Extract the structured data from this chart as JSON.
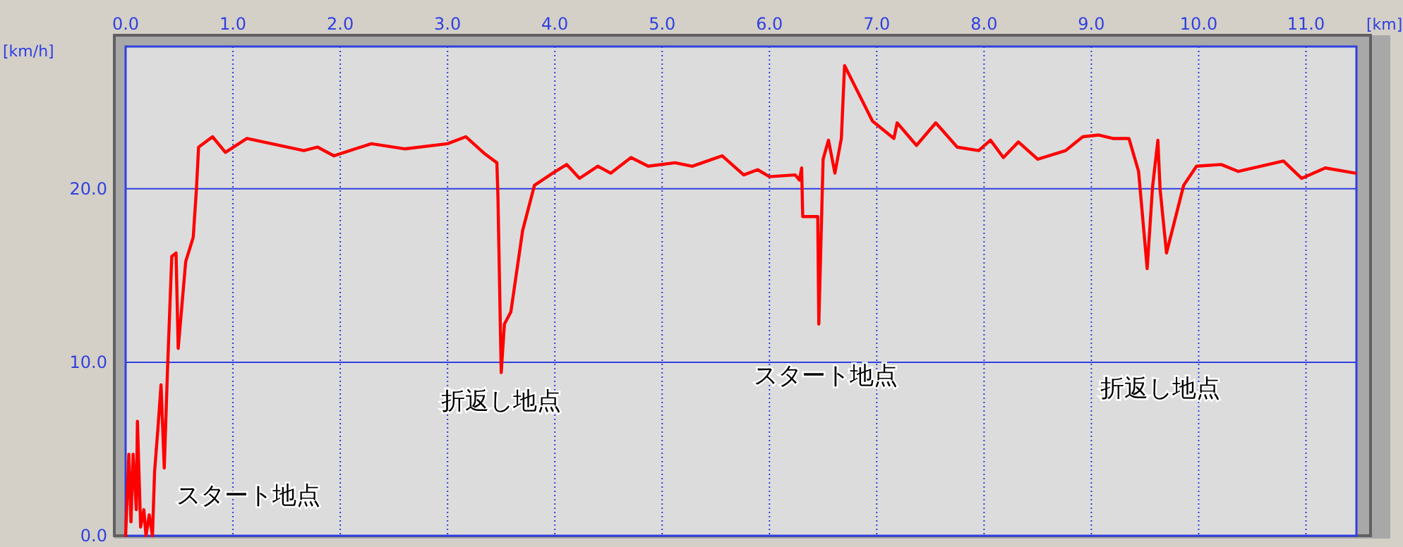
{
  "chart_data": {
    "type": "line",
    "xlabel": "[km]",
    "ylabel": "[km/h]",
    "xlim": [
      0,
      11.47
    ],
    "ylim": [
      0,
      28.2
    ],
    "xticks": [
      {
        "value": 0,
        "label": "0.0"
      },
      {
        "value": 1,
        "label": "1.0"
      },
      {
        "value": 2,
        "label": "2.0"
      },
      {
        "value": 3,
        "label": "3.0"
      },
      {
        "value": 4,
        "label": "4.0"
      },
      {
        "value": 5,
        "label": "5.0"
      },
      {
        "value": 6,
        "label": "6.0"
      },
      {
        "value": 7,
        "label": "7.0"
      },
      {
        "value": 8,
        "label": "8.0"
      },
      {
        "value": 9,
        "label": "9.0"
      },
      {
        "value": 10,
        "label": "10.0"
      },
      {
        "value": 11,
        "label": "11.0"
      }
    ],
    "yticks": [
      {
        "value": 0,
        "label": "0.0"
      },
      {
        "value": 10,
        "label": "10.0"
      },
      {
        "value": 20,
        "label": "20.0"
      }
    ],
    "grid": true,
    "marker": "none",
    "line_style": "solid",
    "annotations": [
      "スタート地点",
      "折返し地点",
      "スタート地点",
      "折返し地点"
    ],
    "series": [
      {
        "color": "#ff0000",
        "x": [
          0,
          0.03,
          0.05,
          0.07,
          0.1,
          0.11,
          0.14,
          0.17,
          0.19,
          0.22,
          0.25,
          0.27,
          0.3,
          0.33,
          0.36,
          0.39,
          0.43,
          0.47,
          0.49,
          0.56,
          0.63,
          0.66,
          0.68,
          0.81,
          0.93,
          1.13,
          1.66,
          1.79,
          1.94,
          2.29,
          2.6,
          3.0,
          3.17,
          3.35,
          3.46,
          3.47,
          3.5,
          3.53,
          3.59,
          3.7,
          3.81,
          3.98,
          4.11,
          4.23,
          4.4,
          4.52,
          4.71,
          4.87,
          5.12,
          5.28,
          5.56,
          5.76,
          5.89,
          6.0,
          6.24,
          6.28,
          6.3,
          6.31,
          6.45,
          6.46,
          6.5,
          6.55,
          6.61,
          6.67,
          6.7,
          6.96,
          7.16,
          7.19,
          7.37,
          7.55,
          7.75,
          7.95,
          8.06,
          8.18,
          8.32,
          8.5,
          8.76,
          8.92,
          9.07,
          9.2,
          9.35,
          9.44,
          9.52,
          9.57,
          9.62,
          9.64,
          9.7,
          9.86,
          9.98,
          10.21,
          10.37,
          10.79,
          10.96,
          11.18,
          11.46
        ],
        "values": [
          0,
          4.7,
          0.8,
          4.7,
          1.5,
          6.6,
          0.5,
          1.5,
          0,
          1.2,
          0,
          3.7,
          6.1,
          8.7,
          3.9,
          9.5,
          16.1,
          16.3,
          10.8,
          15.8,
          17.2,
          20,
          22.4,
          23.0,
          22.1,
          22.9,
          22.2,
          22.4,
          21.9,
          22.6,
          22.3,
          22.6,
          23.0,
          22.0,
          21.5,
          19.5,
          9.4,
          12.2,
          12.9,
          17.6,
          20.2,
          20.9,
          21.4,
          20.6,
          21.3,
          20.9,
          21.8,
          21.3,
          21.5,
          21.3,
          21.9,
          20.8,
          21.1,
          20.7,
          20.8,
          20.5,
          21.2,
          18.4,
          18.4,
          12.2,
          21.7,
          22.8,
          20.9,
          22.9,
          27.1,
          23.9,
          22.9,
          23.8,
          22.5,
          23.8,
          22.4,
          22.2,
          22.8,
          21.8,
          22.7,
          21.7,
          22.2,
          23.0,
          23.1,
          22.9,
          22.9,
          21.0,
          15.4,
          20.1,
          22.8,
          20.0,
          16.3,
          20.2,
          21.3,
          21.4,
          21.0,
          21.6,
          20.6,
          21.2,
          20.9
        ]
      }
    ]
  }
}
